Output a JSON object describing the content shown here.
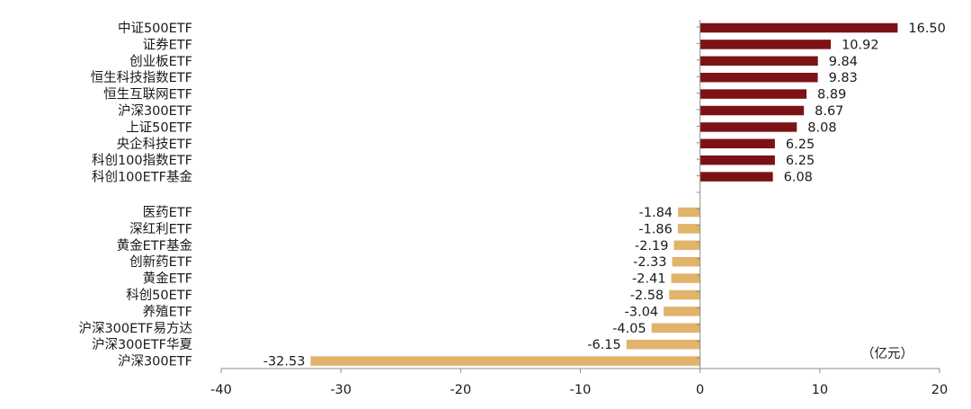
{
  "chart_data": {
    "type": "bar",
    "orientation": "horizontal",
    "unit_note": "（亿元）",
    "xlim": [
      -40,
      20
    ],
    "xticks": [
      "-40",
      "-30",
      "-20",
      "-10",
      "0",
      "10",
      "20"
    ],
    "grid": false,
    "legend": "none",
    "colors": {
      "positive": "#7b1315",
      "negative": "#e0b46a"
    },
    "groups": [
      {
        "categories": [
          "中证500ETF",
          "证券ETF",
          "创业板ETF",
          "恒生科技指数ETF",
          "恒生互联网ETF",
          "沪深300ETF",
          "上证50ETF",
          "央企科技ETF",
          "科创100指数ETF",
          "科创100ETF基金"
        ],
        "values": [
          16.5,
          10.92,
          9.84,
          9.83,
          8.89,
          8.67,
          8.08,
          6.25,
          6.25,
          6.08
        ],
        "labels": [
          "16.50",
          "10.92",
          "9.84",
          "9.83",
          "8.89",
          "8.67",
          "8.08",
          "6.25",
          "6.25",
          "6.08"
        ]
      },
      {
        "categories": [
          "医药ETF",
          "深红利ETF",
          "黄金ETF基金",
          "创新药ETF",
          "黄金ETF",
          "科创50ETF",
          "养殖ETF",
          "沪深300ETF易方达",
          "沪深300ETF华夏",
          "沪深300ETF"
        ],
        "values": [
          -1.84,
          -1.86,
          -2.19,
          -2.33,
          -2.41,
          -2.58,
          -3.04,
          -4.05,
          -6.15,
          -32.53
        ],
        "labels": [
          "-1.84",
          "-1.86",
          "-2.19",
          "-2.33",
          "-2.41",
          "-2.58",
          "-3.04",
          "-4.05",
          "-6.15",
          "-32.53"
        ]
      }
    ]
  }
}
